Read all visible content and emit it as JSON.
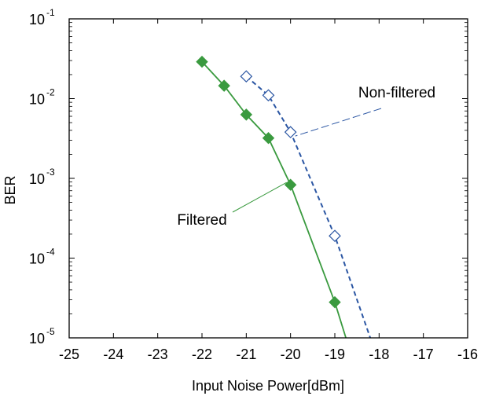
{
  "chart_data": {
    "type": "line",
    "title": "",
    "xlabel": "Input Noise Power[dBm]",
    "ylabel": "BER",
    "xlim": [
      -25,
      -16
    ],
    "ylim": [
      1e-05,
      0.1
    ],
    "yscale": "log",
    "grid": false,
    "x_ticks": [
      "-25",
      "-24",
      "-23",
      "-22",
      "-21",
      "-20",
      "-19",
      "-18",
      "-17",
      "-16"
    ],
    "y_ticks": [
      {
        "base": "10",
        "exp": "-5"
      },
      {
        "base": "10",
        "exp": "-4"
      },
      {
        "base": "10",
        "exp": "-3"
      },
      {
        "base": "10",
        "exp": "-2"
      },
      {
        "base": "10",
        "exp": "-1"
      }
    ],
    "series": [
      {
        "name": "Filtered",
        "color": "#3a9a3f",
        "line_style": "solid",
        "marker": "filled-diamond",
        "points": [
          {
            "x": -22.0,
            "y": 0.029
          },
          {
            "x": -21.5,
            "y": 0.0145
          },
          {
            "x": -21.0,
            "y": 0.0063
          },
          {
            "x": -20.5,
            "y": 0.0032
          },
          {
            "x": -20.0,
            "y": 0.00083
          },
          {
            "x": -19.0,
            "y": 2.8e-05
          }
        ],
        "line_extends_to": {
          "x": -18.75,
          "y": 1e-05
        }
      },
      {
        "name": "Non-filtered",
        "color": "#2b56a3",
        "line_style": "dashed",
        "marker": "open-diamond",
        "points": [
          {
            "x": -21.0,
            "y": 0.019
          },
          {
            "x": -20.5,
            "y": 0.011
          },
          {
            "x": -20.0,
            "y": 0.0038
          },
          {
            "x": -19.0,
            "y": 0.00019
          }
        ],
        "line_extends_to": {
          "x": -18.2,
          "y": 1e-05
        }
      }
    ],
    "annotations": [
      {
        "text": "Non-filtered",
        "series": "Non-filtered",
        "points_to": {
          "x": -20.0,
          "y": 0.0038
        }
      },
      {
        "text": "Filtered",
        "series": "Filtered",
        "points_to": {
          "x": -20.0,
          "y": 0.00083
        }
      }
    ]
  }
}
